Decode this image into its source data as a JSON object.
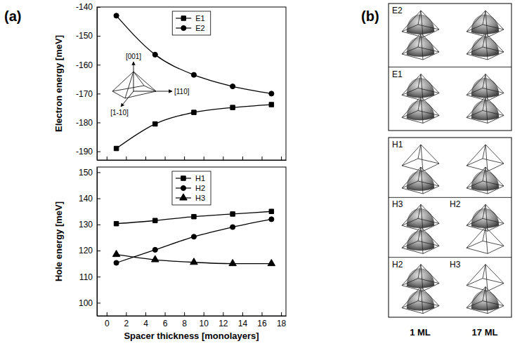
{
  "panel_labels": [
    "(a)",
    "(b)"
  ],
  "chart_data": [
    {
      "type": "line",
      "y_label": "Electron energy [meV]",
      "x": [
        1,
        5,
        9,
        13,
        17
      ],
      "series": [
        {
          "name": "E1",
          "color": "#000000",
          "marker": "square",
          "values": [
            -189,
            -180.5,
            -176.5,
            -174.8,
            -173.8
          ]
        },
        {
          "name": "E2",
          "color": "#000000",
          "marker": "circle",
          "values": [
            -143,
            -156.5,
            -163.5,
            -167.5,
            -170
          ]
        }
      ],
      "xlim": [
        -1,
        18.5
      ],
      "xticks": [
        0,
        2,
        4,
        6,
        8,
        10,
        12,
        14,
        16,
        18
      ],
      "ylim": [
        -193,
        -140
      ],
      "yticks": [
        -190,
        -180,
        -170,
        -160,
        -150,
        -140
      ],
      "tick_labels": "y",
      "legend": "upper center",
      "annotations": [
        "[001]",
        "[1-10]",
        "[110]"
      ]
    },
    {
      "type": "line",
      "y_label": "Hole energy [meV]",
      "x_label": "Spacer thickness [monolayers]",
      "x": [
        1,
        5,
        9,
        13,
        17
      ],
      "series": [
        {
          "name": "H1",
          "color": "#000000",
          "marker": "square",
          "values": [
            130.3,
            131.5,
            133,
            134,
            135
          ]
        },
        {
          "name": "H2",
          "color": "#000000",
          "marker": "circle",
          "values": [
            115.3,
            120.3,
            125.3,
            129,
            132
          ]
        },
        {
          "name": "H3",
          "color": "#000000",
          "marker": "triangle",
          "values": [
            118.5,
            116.5,
            115.5,
            115,
            115
          ]
        }
      ],
      "xlim": [
        -1,
        18.5
      ],
      "xticks": [
        0,
        2,
        4,
        6,
        8,
        10,
        12,
        14,
        16,
        18
      ],
      "ylim": [
        95,
        152
      ],
      "yticks": [
        100,
        110,
        120,
        130,
        140,
        150
      ],
      "legend": "upper center"
    }
  ],
  "diagram": {
    "columns": [
      "1 ML",
      "17 ML"
    ],
    "boxes": [
      {
        "rows": [
          {
            "labels": [
              "E2"
            ],
            "occupied": [
              [
                true,
                true
              ],
              [
                true,
                true
              ]
            ]
          },
          {
            "labels": [
              "E1"
            ],
            "occupied": [
              [
                true,
                true
              ],
              [
                true,
                true
              ]
            ]
          }
        ]
      },
      {
        "rows": [
          {
            "labels": [
              "H1"
            ],
            "occupied": [
              [
                false,
                true
              ],
              [
                false,
                true
              ]
            ]
          },
          {
            "labels": [
              "H3",
              "H2"
            ],
            "occupied": [
              [
                true,
                true
              ],
              [
                true,
                false
              ]
            ]
          },
          {
            "labels": [
              "H2",
              "H3"
            ],
            "occupied": [
              [
                true,
                true
              ],
              [
                false,
                true
              ]
            ]
          }
        ]
      }
    ]
  }
}
